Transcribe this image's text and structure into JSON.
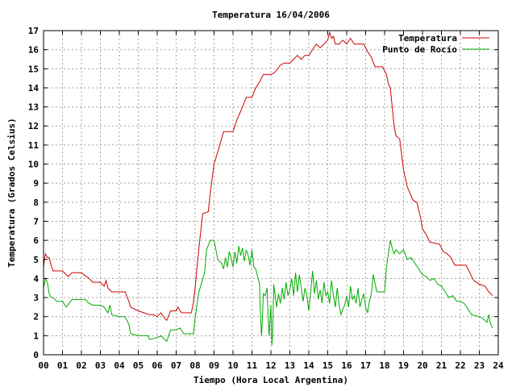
{
  "chart_data": {
    "type": "line",
    "title": "Temperatura 16/04/2006",
    "xlabel": "Tiempo (Hora Local Argentina)",
    "ylabel": "Temperatura (Grados Celsius)",
    "xlim": [
      0,
      24
    ],
    "ylim": [
      0,
      17
    ],
    "x_ticks": [
      "00",
      "01",
      "02",
      "03",
      "04",
      "05",
      "06",
      "07",
      "08",
      "09",
      "10",
      "11",
      "12",
      "13",
      "14",
      "15",
      "16",
      "17",
      "18",
      "19",
      "20",
      "21",
      "22",
      "23",
      "24"
    ],
    "y_ticks": [
      "0",
      "1",
      "2",
      "3",
      "4",
      "5",
      "6",
      "7",
      "8",
      "9",
      "10",
      "11",
      "12",
      "13",
      "14",
      "15",
      "16",
      "17"
    ],
    "grid": true,
    "legend_position": "top-right",
    "series": [
      {
        "name": "Temperatura",
        "color": "#cc0000",
        "points": [
          [
            0.0,
            4.6
          ],
          [
            0.05,
            5.0
          ],
          [
            0.1,
            5.3
          ],
          [
            0.2,
            5.1
          ],
          [
            0.3,
            5.1
          ],
          [
            0.4,
            4.7
          ],
          [
            0.5,
            4.4
          ],
          [
            0.8,
            4.4
          ],
          [
            1.0,
            4.4
          ],
          [
            1.3,
            4.1
          ],
          [
            1.5,
            4.3
          ],
          [
            2.0,
            4.3
          ],
          [
            2.4,
            4.0
          ],
          [
            2.6,
            3.8
          ],
          [
            3.0,
            3.8
          ],
          [
            3.2,
            3.6
          ],
          [
            3.3,
            3.9
          ],
          [
            3.4,
            3.5
          ],
          [
            3.6,
            3.3
          ],
          [
            4.0,
            3.3
          ],
          [
            4.3,
            3.3
          ],
          [
            4.5,
            2.8
          ],
          [
            4.6,
            2.5
          ],
          [
            5.0,
            2.3
          ],
          [
            5.3,
            2.2
          ],
          [
            5.6,
            2.1
          ],
          [
            5.8,
            2.1
          ],
          [
            6.0,
            2.0
          ],
          [
            6.2,
            2.2
          ],
          [
            6.4,
            1.9
          ],
          [
            6.5,
            1.8
          ],
          [
            6.7,
            2.3
          ],
          [
            7.0,
            2.3
          ],
          [
            7.1,
            2.5
          ],
          [
            7.2,
            2.3
          ],
          [
            7.3,
            2.2
          ],
          [
            7.8,
            2.2
          ],
          [
            7.9,
            2.7
          ],
          [
            8.0,
            3.5
          ],
          [
            8.2,
            5.6
          ],
          [
            8.4,
            7.4
          ],
          [
            8.7,
            7.5
          ],
          [
            8.8,
            8.5
          ],
          [
            9.0,
            10.0
          ],
          [
            9.3,
            11.0
          ],
          [
            9.5,
            11.7
          ],
          [
            10.0,
            11.7
          ],
          [
            10.2,
            12.3
          ],
          [
            10.5,
            13.0
          ],
          [
            10.7,
            13.5
          ],
          [
            11.0,
            13.5
          ],
          [
            11.2,
            14.0
          ],
          [
            11.4,
            14.3
          ],
          [
            11.6,
            14.7
          ],
          [
            12.0,
            14.7
          ],
          [
            12.2,
            14.8
          ],
          [
            12.5,
            15.2
          ],
          [
            12.7,
            15.3
          ],
          [
            13.0,
            15.3
          ],
          [
            13.2,
            15.5
          ],
          [
            13.4,
            15.7
          ],
          [
            13.6,
            15.5
          ],
          [
            13.8,
            15.7
          ],
          [
            14.0,
            15.7
          ],
          [
            14.2,
            16.0
          ],
          [
            14.4,
            16.3
          ],
          [
            14.6,
            16.1
          ],
          [
            14.8,
            16.3
          ],
          [
            15.0,
            16.5
          ],
          [
            15.1,
            16.9
          ],
          [
            15.2,
            16.6
          ],
          [
            15.3,
            16.7
          ],
          [
            15.4,
            16.3
          ],
          [
            15.6,
            16.3
          ],
          [
            15.8,
            16.5
          ],
          [
            16.0,
            16.3
          ],
          [
            16.2,
            16.6
          ],
          [
            16.4,
            16.3
          ],
          [
            16.9,
            16.3
          ],
          [
            17.1,
            15.9
          ],
          [
            17.3,
            15.6
          ],
          [
            17.5,
            15.1
          ],
          [
            17.9,
            15.1
          ],
          [
            18.1,
            14.7
          ],
          [
            18.2,
            14.2
          ],
          [
            18.3,
            14.0
          ],
          [
            18.5,
            12.0
          ],
          [
            18.6,
            11.5
          ],
          [
            18.8,
            11.3
          ],
          [
            18.9,
            10.5
          ],
          [
            19.0,
            9.7
          ],
          [
            19.2,
            8.8
          ],
          [
            19.5,
            8.1
          ],
          [
            19.7,
            8.0
          ],
          [
            19.9,
            7.2
          ],
          [
            20.0,
            6.6
          ],
          [
            20.2,
            6.3
          ],
          [
            20.4,
            5.9
          ],
          [
            20.9,
            5.8
          ],
          [
            21.1,
            5.4
          ],
          [
            21.3,
            5.3
          ],
          [
            21.5,
            5.1
          ],
          [
            21.7,
            4.7
          ],
          [
            22.0,
            4.7
          ],
          [
            22.3,
            4.7
          ],
          [
            22.5,
            4.3
          ],
          [
            22.7,
            3.9
          ],
          [
            23.0,
            3.7
          ],
          [
            23.3,
            3.6
          ],
          [
            23.5,
            3.3
          ],
          [
            23.7,
            3.1
          ]
        ]
      },
      {
        "name": "Punto de Rocío",
        "color": "#00aa00",
        "points": [
          [
            0.0,
            3.5
          ],
          [
            0.1,
            4.0
          ],
          [
            0.2,
            3.8
          ],
          [
            0.3,
            3.2
          ],
          [
            0.4,
            3.0
          ],
          [
            0.5,
            3.0
          ],
          [
            0.7,
            2.8
          ],
          [
            1.0,
            2.8
          ],
          [
            1.2,
            2.5
          ],
          [
            1.5,
            2.9
          ],
          [
            2.0,
            2.9
          ],
          [
            2.2,
            2.9
          ],
          [
            2.4,
            2.7
          ],
          [
            2.6,
            2.6
          ],
          [
            3.0,
            2.6
          ],
          [
            3.2,
            2.5
          ],
          [
            3.4,
            2.2
          ],
          [
            3.5,
            2.6
          ],
          [
            3.6,
            2.1
          ],
          [
            4.0,
            2.0
          ],
          [
            4.3,
            2.0
          ],
          [
            4.5,
            1.6
          ],
          [
            4.6,
            1.1
          ],
          [
            5.0,
            1.0
          ],
          [
            5.5,
            1.0
          ],
          [
            5.6,
            0.8
          ],
          [
            6.0,
            0.9
          ],
          [
            6.2,
            1.0
          ],
          [
            6.4,
            0.8
          ],
          [
            6.5,
            0.7
          ],
          [
            6.7,
            1.3
          ],
          [
            7.0,
            1.3
          ],
          [
            7.2,
            1.4
          ],
          [
            7.4,
            1.1
          ],
          [
            7.9,
            1.1
          ],
          [
            8.0,
            1.9
          ],
          [
            8.2,
            3.3
          ],
          [
            8.5,
            4.3
          ],
          [
            8.6,
            5.5
          ],
          [
            8.8,
            6.0
          ],
          [
            9.0,
            6.0
          ],
          [
            9.2,
            5.0
          ],
          [
            9.4,
            4.8
          ],
          [
            9.5,
            4.5
          ],
          [
            9.6,
            5.1
          ],
          [
            9.7,
            4.6
          ],
          [
            9.8,
            5.4
          ],
          [
            9.9,
            5.1
          ],
          [
            10.0,
            4.6
          ],
          [
            10.1,
            5.4
          ],
          [
            10.2,
            4.8
          ],
          [
            10.3,
            5.7
          ],
          [
            10.4,
            5.2
          ],
          [
            10.5,
            5.6
          ],
          [
            10.6,
            4.9
          ],
          [
            10.7,
            5.5
          ],
          [
            10.8,
            5.2
          ],
          [
            10.9,
            4.7
          ],
          [
            11.0,
            5.5
          ],
          [
            11.1,
            4.6
          ],
          [
            11.2,
            4.5
          ],
          [
            11.3,
            4.1
          ],
          [
            11.4,
            3.7
          ],
          [
            11.45,
            2.1
          ],
          [
            11.5,
            1.0
          ],
          [
            11.55,
            1.8
          ],
          [
            11.6,
            3.2
          ],
          [
            11.7,
            3.1
          ],
          [
            11.8,
            3.5
          ],
          [
            11.85,
            2.0
          ],
          [
            11.9,
            1.0
          ],
          [
            12.0,
            2.6
          ],
          [
            12.05,
            0.5
          ],
          [
            12.1,
            1.2
          ],
          [
            12.15,
            3.7
          ],
          [
            12.2,
            3.3
          ],
          [
            12.3,
            2.5
          ],
          [
            12.4,
            3.2
          ],
          [
            12.5,
            2.7
          ],
          [
            12.6,
            3.5
          ],
          [
            12.7,
            2.9
          ],
          [
            12.8,
            3.8
          ],
          [
            12.9,
            3.1
          ],
          [
            13.0,
            3.4
          ],
          [
            13.1,
            4.0
          ],
          [
            13.2,
            3.1
          ],
          [
            13.3,
            4.3
          ],
          [
            13.4,
            3.3
          ],
          [
            13.5,
            4.2
          ],
          [
            13.6,
            3.5
          ],
          [
            13.7,
            2.8
          ],
          [
            13.8,
            3.5
          ],
          [
            13.9,
            3.1
          ],
          [
            14.0,
            2.3
          ],
          [
            14.1,
            3.3
          ],
          [
            14.2,
            4.4
          ],
          [
            14.3,
            3.2
          ],
          [
            14.4,
            3.9
          ],
          [
            14.5,
            2.9
          ],
          [
            14.6,
            3.4
          ],
          [
            14.7,
            2.7
          ],
          [
            14.8,
            3.8
          ],
          [
            14.9,
            3.1
          ],
          [
            15.0,
            3.3
          ],
          [
            15.1,
            2.7
          ],
          [
            15.2,
            3.9
          ],
          [
            15.3,
            3.1
          ],
          [
            15.4,
            2.5
          ],
          [
            15.5,
            3.5
          ],
          [
            15.6,
            2.6
          ],
          [
            15.7,
            2.1
          ],
          [
            15.8,
            2.4
          ],
          [
            15.9,
            2.6
          ],
          [
            16.0,
            3.1
          ],
          [
            16.1,
            2.5
          ],
          [
            16.2,
            3.6
          ],
          [
            16.3,
            2.9
          ],
          [
            16.4,
            3.1
          ],
          [
            16.5,
            2.7
          ],
          [
            16.6,
            3.5
          ],
          [
            16.7,
            2.5
          ],
          [
            16.8,
            2.9
          ],
          [
            16.9,
            3.2
          ],
          [
            17.0,
            2.5
          ],
          [
            17.1,
            2.2
          ],
          [
            17.2,
            2.8
          ],
          [
            17.3,
            3.2
          ],
          [
            17.4,
            4.2
          ],
          [
            17.5,
            3.7
          ],
          [
            17.6,
            3.3
          ],
          [
            18.0,
            3.3
          ],
          [
            18.1,
            4.6
          ],
          [
            18.3,
            6.0
          ],
          [
            18.4,
            5.6
          ],
          [
            18.5,
            5.3
          ],
          [
            18.6,
            5.5
          ],
          [
            18.8,
            5.3
          ],
          [
            19.0,
            5.5
          ],
          [
            19.2,
            5.0
          ],
          [
            19.4,
            5.1
          ],
          [
            19.6,
            4.8
          ],
          [
            19.8,
            4.5
          ],
          [
            20.0,
            4.2
          ],
          [
            20.2,
            4.1
          ],
          [
            20.4,
            3.9
          ],
          [
            20.6,
            4.0
          ],
          [
            20.8,
            3.7
          ],
          [
            21.0,
            3.6
          ],
          [
            21.2,
            3.3
          ],
          [
            21.4,
            3.0
          ],
          [
            21.6,
            3.1
          ],
          [
            21.8,
            2.8
          ],
          [
            22.0,
            2.8
          ],
          [
            22.2,
            2.7
          ],
          [
            22.4,
            2.4
          ],
          [
            22.6,
            2.1
          ],
          [
            23.0,
            2.0
          ],
          [
            23.2,
            1.9
          ],
          [
            23.4,
            1.7
          ],
          [
            23.5,
            2.1
          ],
          [
            23.6,
            1.6
          ],
          [
            23.7,
            1.4
          ]
        ]
      }
    ]
  }
}
